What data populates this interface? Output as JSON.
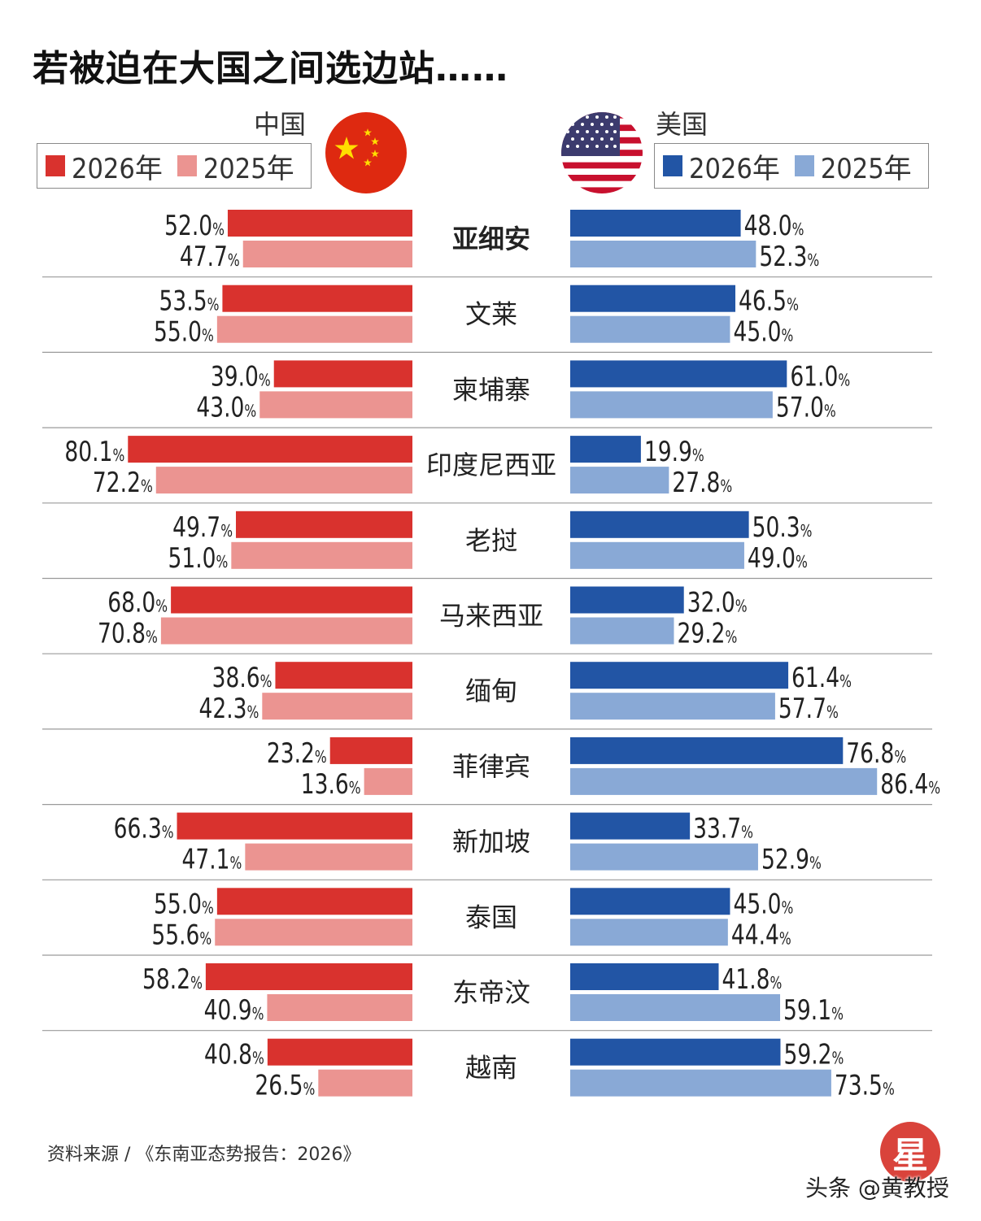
{
  "title": "若被迫在大国之间选边站……",
  "china": {
    "name": "中国",
    "flag_icon": "china-flag-icon",
    "legend": [
      {
        "label": "2026年",
        "color": "#d9322e"
      },
      {
        "label": "2025年",
        "color": "#eb9491"
      }
    ]
  },
  "usa": {
    "name": "美国",
    "flag_icon": "us-flag-icon",
    "legend": [
      {
        "label": "2026年",
        "color": "#2255a5"
      },
      {
        "label": "2025年",
        "color": "#89a9d6"
      }
    ]
  },
  "chart_data": {
    "type": "bar",
    "title": "若被迫在大国之间选边站……",
    "orientation": "diverging-horizontal",
    "unit": "%",
    "categories": [
      "亚细安",
      "文莱",
      "柬埔寨",
      "印度尼西亚",
      "老挝",
      "马来西亚",
      "缅甸",
      "菲律宾",
      "新加坡",
      "泰国",
      "东帝汶",
      "越南"
    ],
    "bold_categories": [
      "亚细安"
    ],
    "xlim": [
      0,
      100
    ],
    "series": [
      {
        "name": "中国 2026年",
        "side": "left",
        "color": "#d9322e",
        "values": [
          52.0,
          53.5,
          39.0,
          80.1,
          49.7,
          68.0,
          38.6,
          23.2,
          66.3,
          55.0,
          58.2,
          40.8
        ]
      },
      {
        "name": "中国 2025年",
        "side": "left",
        "color": "#eb9491",
        "values": [
          47.7,
          55.0,
          43.0,
          72.2,
          51.0,
          70.8,
          42.3,
          13.6,
          47.1,
          55.6,
          40.9,
          26.5
        ]
      },
      {
        "name": "美国 2026年",
        "side": "right",
        "color": "#2255a5",
        "values": [
          48.0,
          46.5,
          61.0,
          19.9,
          50.3,
          32.0,
          61.4,
          76.8,
          33.7,
          45.0,
          41.8,
          59.2
        ]
      },
      {
        "name": "美国 2025年",
        "side": "right",
        "color": "#89a9d6",
        "values": [
          52.3,
          45.0,
          57.0,
          27.8,
          49.0,
          29.2,
          57.7,
          86.4,
          52.9,
          44.4,
          59.1,
          73.5
        ]
      }
    ],
    "value_suffix": "%"
  },
  "source": "资料来源 / 《东南亚态势报告：2026》",
  "logo_text": "星",
  "watermark": "头条 @黄教授"
}
